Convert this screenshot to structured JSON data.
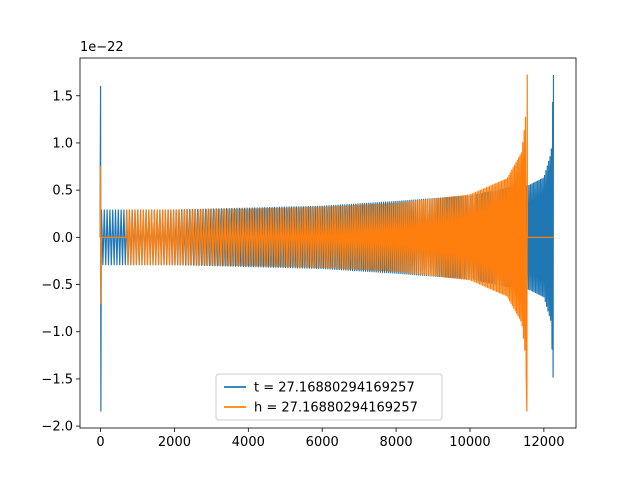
{
  "chart_data": {
    "type": "line",
    "title": "",
    "xlabel": "",
    "ylabel": "",
    "y_offset_label": "1e−22",
    "xlim": [
      -557,
      12870
    ],
    "ylim": [
      -2.02,
      1.9
    ],
    "x_ticks": [
      0,
      2000,
      4000,
      6000,
      8000,
      10000,
      12000
    ],
    "x_tick_labels": [
      "0",
      "2000",
      "4000",
      "6000",
      "8000",
      "10000",
      "12000"
    ],
    "y_ticks": [
      1.5,
      1.0,
      0.5,
      0.0,
      -0.5,
      -1.0,
      -1.5,
      -2.0
    ],
    "y_tick_labels": [
      "1.5",
      "1.0",
      "0.5",
      "0.0",
      "−0.5",
      "−1.0",
      "−1.5",
      "−2.0"
    ],
    "grid": false,
    "legend_position": "lower center",
    "series": [
      {
        "name": "t = 27.16880294169257",
        "color": "#1f77b4",
        "description_points": {
          "spike": {
            "x": 0,
            "y_max": 1.6,
            "y_min": -1.84
          },
          "chirp_start_x": 0,
          "chirp_end_x": 12260,
          "envelope": [
            [
              0,
              0.29
            ],
            [
              2000,
              0.29
            ],
            [
              4000,
              0.31
            ],
            [
              6000,
              0.33
            ],
            [
              8000,
              0.38
            ],
            [
              10000,
              0.44
            ],
            [
              11000,
              0.52
            ],
            [
              11600,
              0.55
            ],
            [
              12000,
              0.63
            ],
            [
              12200,
              0.9
            ],
            [
              12260,
              1.72
            ]
          ],
          "merger": {
            "x": 12260,
            "y_max": 1.72,
            "y_min": -1.48
          }
        }
      },
      {
        "name": "h = 27.16880294169257",
        "color": "#ff7f0e",
        "description_points": {
          "spike": {
            "x": 0,
            "y_max": 0.75,
            "y_min": -0.7
          },
          "flat_until_x": 700,
          "chirp_start_x": 700,
          "chirp_end_x": 11550,
          "envelope": [
            [
              700,
              0.29
            ],
            [
              2000,
              0.29
            ],
            [
              4000,
              0.3
            ],
            [
              6000,
              0.32
            ],
            [
              8000,
              0.36
            ],
            [
              10000,
              0.45
            ],
            [
              11000,
              0.62
            ],
            [
              11400,
              0.9
            ],
            [
              11500,
              1.25
            ],
            [
              11550,
              1.72
            ]
          ],
          "merger": {
            "x": 11550,
            "y_max": 1.72,
            "y_min": -1.84
          },
          "tail_flat_until_x": 12260
        }
      }
    ]
  }
}
